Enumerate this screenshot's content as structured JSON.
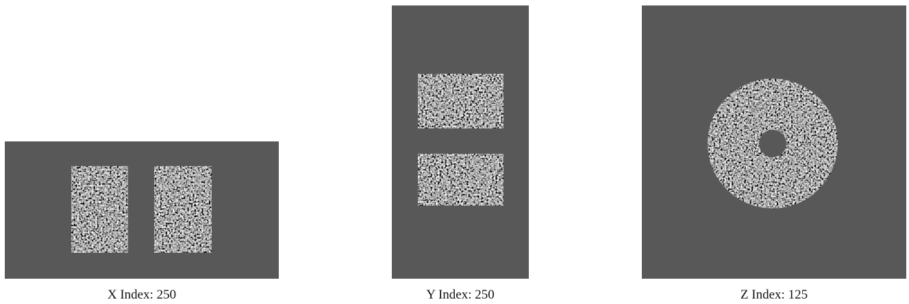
{
  "panels": [
    {
      "caption": "X Index: 250"
    },
    {
      "caption": "Y Index: 250"
    },
    {
      "caption": "Z Index: 125"
    }
  ]
}
